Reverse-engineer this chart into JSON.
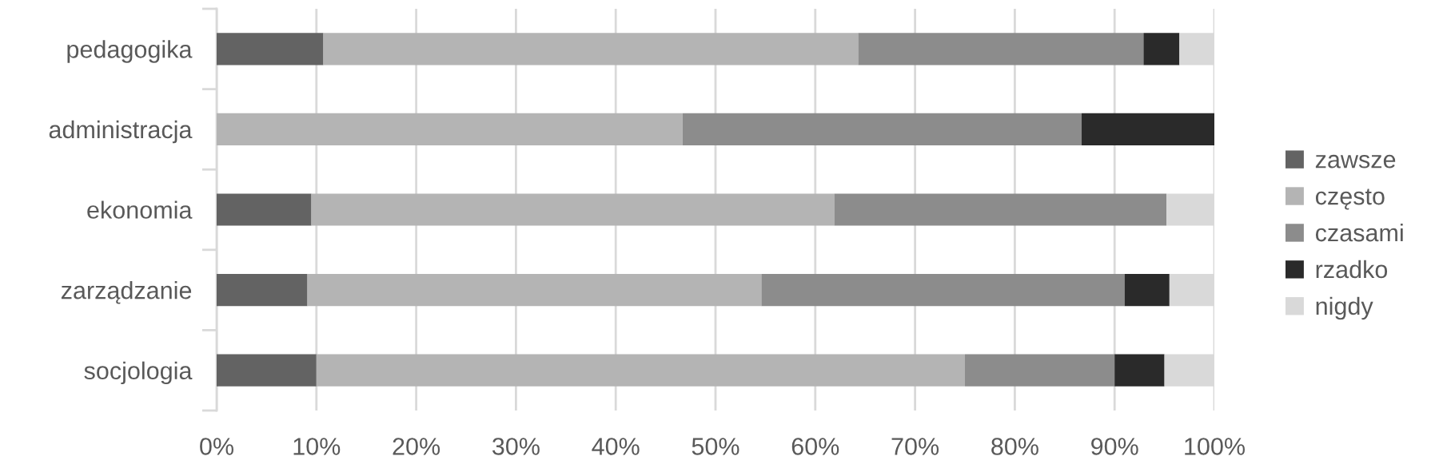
{
  "chart_data": {
    "type": "bar",
    "orientation": "horizontal",
    "stacked": true,
    "categories": [
      "pedagogika",
      "administracja",
      "ekonomia",
      "zarządzanie",
      "socjologia"
    ],
    "series": [
      {
        "name": "zawsze",
        "color": "#636363",
        "values": [
          10.7,
          0,
          9.5,
          9.1,
          10
        ]
      },
      {
        "name": "często",
        "color": "#b4b4b4",
        "values": [
          53.6,
          46.7,
          52.4,
          45.5,
          65
        ]
      },
      {
        "name": "czasami",
        "color": "#8c8c8c",
        "values": [
          28.6,
          40,
          33.3,
          36.4,
          15
        ]
      },
      {
        "name": "rzadko",
        "color": "#2a2a2a",
        "values": [
          3.6,
          13.3,
          0,
          4.5,
          5
        ]
      },
      {
        "name": "nigdy",
        "color": "#d9d9d9",
        "values": [
          3.6,
          0,
          4.8,
          4.5,
          5
        ]
      }
    ],
    "xlim": [
      0,
      100
    ],
    "xticks": [
      {
        "value": 0,
        "label": "0%"
      },
      {
        "value": 10,
        "label": "10%"
      },
      {
        "value": 20,
        "label": "20%"
      },
      {
        "value": 30,
        "label": "30%"
      },
      {
        "value": 40,
        "label": "40%"
      },
      {
        "value": 50,
        "label": "50%"
      },
      {
        "value": 60,
        "label": "60%"
      },
      {
        "value": 70,
        "label": "70%"
      },
      {
        "value": 80,
        "label": "80%"
      },
      {
        "value": 90,
        "label": "90%"
      },
      {
        "value": 100,
        "label": "100%"
      }
    ],
    "grid": "x",
    "legend": "right"
  }
}
